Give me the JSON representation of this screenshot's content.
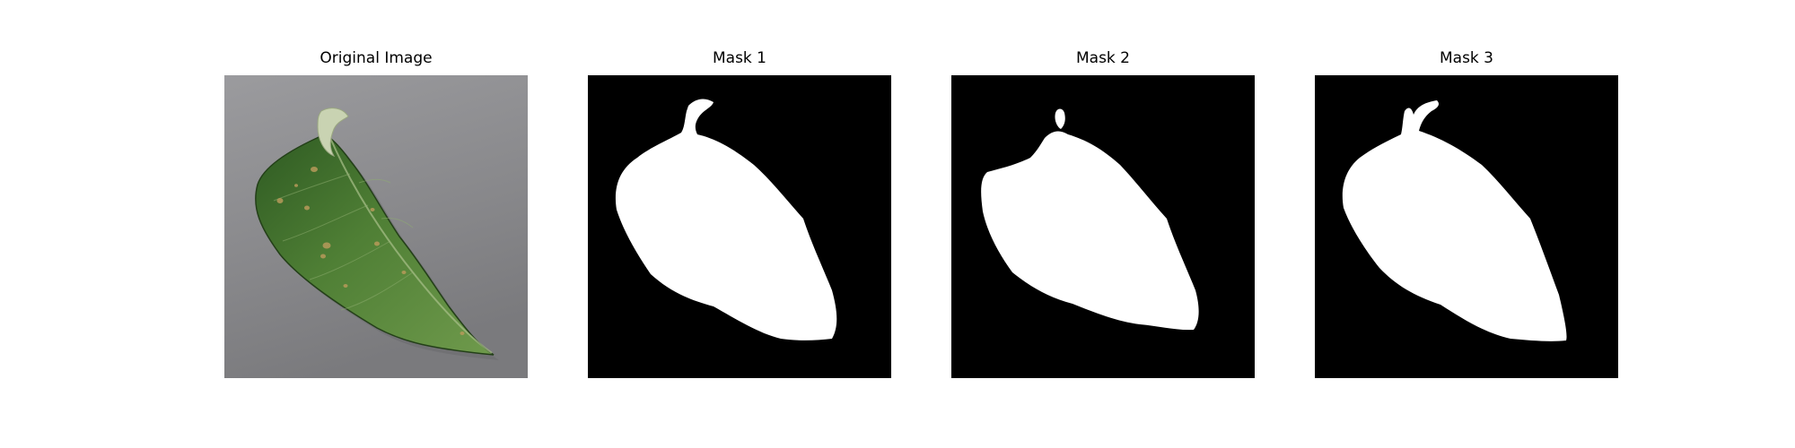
{
  "figure": {
    "background": "#ffffff",
    "panels": [
      {
        "title": "Original Image",
        "kind": "photo"
      },
      {
        "title": "Mask 1",
        "kind": "mask"
      },
      {
        "title": "Mask 2",
        "kind": "mask"
      },
      {
        "title": "Mask 3",
        "kind": "mask"
      }
    ]
  },
  "colors": {
    "photo_background": "#8c8c8f",
    "leaf_dark": "#2e5a22",
    "leaf_mid": "#4f7f35",
    "leaf_light": "#6f9a4c",
    "leaf_spots": "#b79a5a",
    "stem": "#c9d3b2",
    "mask_background": "#000000",
    "mask_foreground": "#ffffff"
  },
  "icons": {
    "leaf": "leaf-photo",
    "mask": "segmentation-mask"
  }
}
